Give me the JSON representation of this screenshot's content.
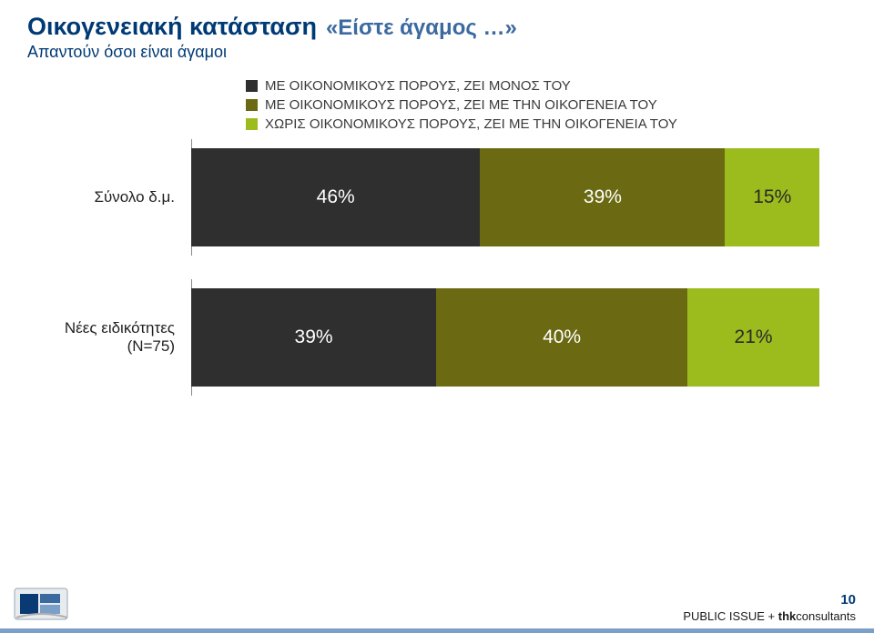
{
  "colors": {
    "title": "#003a75",
    "question": "#3b6aa0",
    "subtitle": "#003a75",
    "footer_border": "#7a9fc9",
    "slide_no": "#003a75"
  },
  "header": {
    "title": "Οικογενειακή κατάσταση",
    "question": "«Είστε άγαμος …»",
    "subtitle": "Απαντούν όσοι είναι άγαμοι"
  },
  "chart": {
    "type": "stacked-bar-horizontal",
    "legend": [
      {
        "label": "ΜΕ ΟΙΚΟΝΟΜΙΚΟΥΣ ΠΟΡΟΥΣ, ΖΕΙ ΜΟΝΟΣ ΤΟΥ",
        "color": "#2f2f2f"
      },
      {
        "label": "ΜΕ ΟΙΚΟΝΟΜΙΚΟΥΣ ΠΟΡΟΥΣ, ΖΕΙ ΜΕ ΤΗΝ ΟΙΚΟΓΕΝΕΙΑ ΤΟΥ",
        "color": "#6b6a12"
      },
      {
        "label": "ΧΩΡΙΣ ΟΙΚΟΝΟΜΙΚΟΥΣ ΠΟΡΟΥΣ, ΖΕΙ ΜΕ ΤΗΝ ΟΙΚΟΓΕΝΕΙΑ ΤΟΥ",
        "color": "#9cbc1e"
      }
    ],
    "rows": [
      {
        "label": "Σύνολο δ.μ.",
        "segments": [
          {
            "value": 46,
            "text": "46%",
            "color": "#2f2f2f",
            "text_color": "#ffffff"
          },
          {
            "value": 39,
            "text": "39%",
            "color": "#6b6a12",
            "text_color": "#ffffff"
          },
          {
            "value": 15,
            "text": "15%",
            "color": "#9cbc1e",
            "text_color": "#2a2a2a"
          }
        ]
      },
      {
        "label": "Νέες ειδικότητες (Ν=75)",
        "segments": [
          {
            "value": 39,
            "text": "39%",
            "color": "#2f2f2f",
            "text_color": "#ffffff"
          },
          {
            "value": 40,
            "text": "40%",
            "color": "#6b6a12",
            "text_color": "#ffffff"
          },
          {
            "value": 21,
            "text": "21%",
            "color": "#9cbc1e",
            "text_color": "#2a2a2a"
          }
        ]
      }
    ]
  },
  "footer": {
    "slide_no": "10",
    "credit_prefix": "PUBLIC ISSUE + ",
    "credit_bold": "thk",
    "credit_suffix": "consultants"
  }
}
